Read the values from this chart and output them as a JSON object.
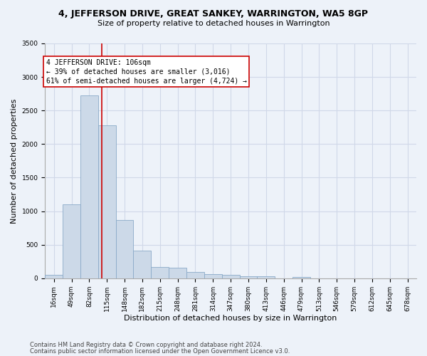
{
  "title": "4, JEFFERSON DRIVE, GREAT SANKEY, WARRINGTON, WA5 8GP",
  "subtitle": "Size of property relative to detached houses in Warrington",
  "xlabel": "Distribution of detached houses by size in Warrington",
  "ylabel": "Number of detached properties",
  "footer1": "Contains HM Land Registry data © Crown copyright and database right 2024.",
  "footer2": "Contains public sector information licensed under the Open Government Licence v3.0.",
  "bar_labels": [
    "16sqm",
    "49sqm",
    "82sqm",
    "115sqm",
    "148sqm",
    "182sqm",
    "215sqm",
    "248sqm",
    "281sqm",
    "314sqm",
    "347sqm",
    "380sqm",
    "413sqm",
    "446sqm",
    "479sqm",
    "513sqm",
    "546sqm",
    "579sqm",
    "612sqm",
    "645sqm",
    "678sqm"
  ],
  "bar_values": [
    55,
    1100,
    2730,
    2280,
    870,
    415,
    170,
    160,
    95,
    60,
    50,
    28,
    25,
    0,
    20,
    0,
    0,
    0,
    0,
    0,
    0
  ],
  "bar_color": "#ccd9e8",
  "bar_edge_color": "#8aaac8",
  "grid_color": "#d0d8e8",
  "bg_color": "#edf2f9",
  "ylim": [
    0,
    3500
  ],
  "yticks": [
    0,
    500,
    1000,
    1500,
    2000,
    2500,
    3000,
    3500
  ],
  "annotation_text1": "4 JEFFERSON DRIVE: 106sqm",
  "annotation_text2": "← 39% of detached houses are smaller (3,016)",
  "annotation_text3": "61% of semi-detached houses are larger (4,724) →",
  "annotation_box_facecolor": "white",
  "annotation_box_edgecolor": "#cc0000",
  "vline_color": "#cc0000",
  "title_fontsize": 9,
  "subtitle_fontsize": 8,
  "ylabel_fontsize": 8,
  "xlabel_fontsize": 8,
  "tick_fontsize": 6.5,
  "annotation_fontsize": 7,
  "footer_fontsize": 6
}
